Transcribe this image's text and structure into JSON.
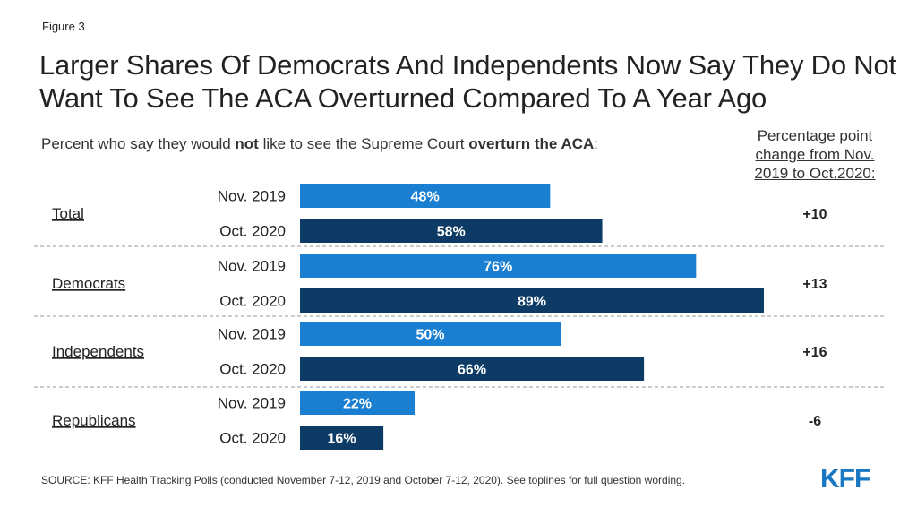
{
  "figure_label": "Figure 3",
  "title": "Larger Shares Of Democrats And Independents Now Say They Do Not Want To See The ACA Overturned Compared To A Year Ago",
  "subtitle": {
    "part1": "Percent who say they would ",
    "bold1": "not",
    "part2": " like to see the Supreme Court ",
    "bold2": "overturn the ACA",
    "part3": ":"
  },
  "change_header": "Percentage point change from Nov. 2019 to Oct.2020:",
  "source": "SOURCE: KFF Health Tracking Polls (conducted November 7-12, 2019 and October 7-12, 2020). See toplines for full question wording.",
  "logo": "KFF",
  "colors": {
    "nov2019": "#1a7fd1",
    "oct2020": "#0d3b66",
    "divider": "#999999"
  },
  "chart_data": {
    "type": "bar",
    "orientation": "horizontal",
    "xlim": [
      0,
      100
    ],
    "categories": [
      "Total",
      "Democrats",
      "Independents",
      "Republicans"
    ],
    "series": [
      {
        "name": "Nov. 2019",
        "values": [
          48,
          76,
          50,
          22
        ],
        "labels": [
          "48%",
          "76%",
          "50%",
          "22%"
        ]
      },
      {
        "name": "Oct. 2020",
        "values": [
          58,
          89,
          66,
          16
        ],
        "labels": [
          "58%",
          "89%",
          "66%",
          "16%"
        ]
      }
    ],
    "change": [
      "+10",
      "+13",
      "+16",
      "-6"
    ]
  }
}
